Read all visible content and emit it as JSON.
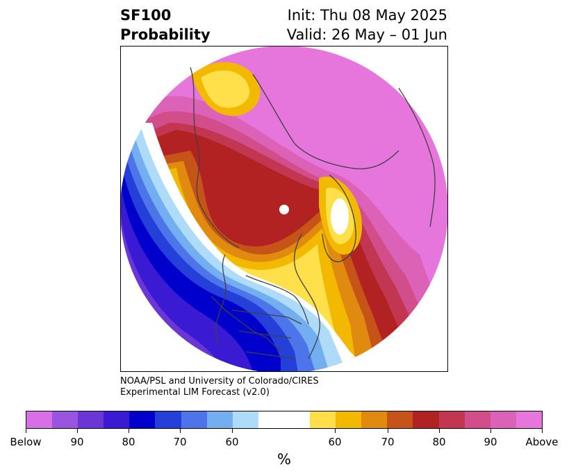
{
  "header": {
    "variable": "SF100",
    "quantity": "Probability",
    "init": "Init: Thu 08 May 2025",
    "valid": "Valid: 26 May – 01 Jun"
  },
  "credit": {
    "line1": "NOAA/PSL and University of Colorado/CIRES",
    "line2": "Experimental LIM Forecast (v2.0)"
  },
  "colorbar": {
    "unit": "%",
    "colors": [
      "#d76fe6",
      "#9a55e0",
      "#6a36d6",
      "#3a1bd3",
      "#0000cc",
      "#2440d9",
      "#4d74e8",
      "#72aef0",
      "#aedcf8",
      "#ffffff",
      "#ffffff",
      "#ffe04a",
      "#f3b800",
      "#e08a10",
      "#c65419",
      "#b22222",
      "#c23652",
      "#d24e8a",
      "#dc62b8",
      "#e676dc"
    ],
    "tick_labels": [
      "Below",
      "90",
      "80",
      "70",
      "60",
      "60",
      "70",
      "80",
      "90",
      "Above"
    ]
  },
  "legend_colors": {
    "below_strong": "#6a36d6",
    "below_core": "#0000cc",
    "neutral": "#ffffff",
    "above_weak": "#ffe04a",
    "above_core": "#b22222",
    "above_strong": "#e676dc"
  }
}
